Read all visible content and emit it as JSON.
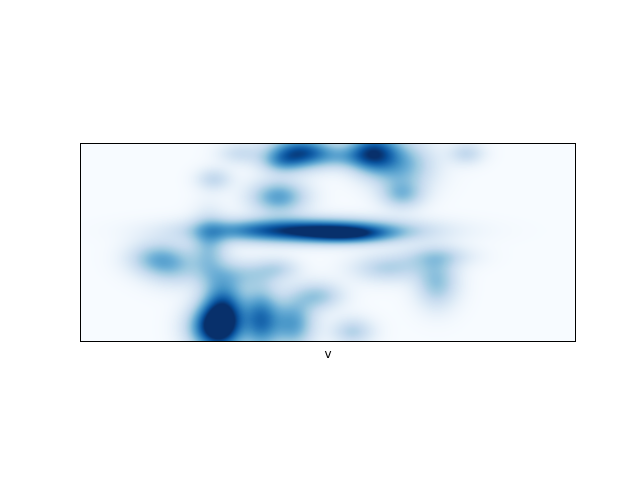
{
  "chart_data": {
    "type": "heatmap",
    "colormap": "Blues",
    "interpolation": "smooth",
    "axes_ticks_visible": false,
    "xlabel": "v",
    "blobs": [
      {
        "cx": 0.455,
        "cy": 0.44,
        "rx": 0.14,
        "ry": 0.042,
        "w": 1.0
      },
      {
        "cx": 0.54,
        "cy": 0.46,
        "rx": 0.06,
        "ry": 0.03,
        "w": 0.45
      },
      {
        "cx": 0.445,
        "cy": 0.045,
        "rx": 0.045,
        "ry": 0.055,
        "w": 0.85
      },
      {
        "cx": 0.59,
        "cy": 0.045,
        "rx": 0.035,
        "ry": 0.07,
        "w": 0.8
      },
      {
        "cx": 0.65,
        "cy": 0.11,
        "rx": 0.045,
        "ry": 0.09,
        "w": 0.45
      },
      {
        "cx": 0.405,
        "cy": 0.095,
        "rx": 0.03,
        "ry": 0.04,
        "w": 0.3
      },
      {
        "cx": 0.53,
        "cy": 0.07,
        "rx": 0.04,
        "ry": 0.04,
        "w": 0.25
      },
      {
        "cx": 0.32,
        "cy": 0.05,
        "rx": 0.03,
        "ry": 0.04,
        "w": 0.2
      },
      {
        "cx": 0.78,
        "cy": 0.05,
        "rx": 0.025,
        "ry": 0.04,
        "w": 0.25
      },
      {
        "cx": 0.27,
        "cy": 0.18,
        "rx": 0.025,
        "ry": 0.04,
        "w": 0.25
      },
      {
        "cx": 0.4,
        "cy": 0.27,
        "rx": 0.04,
        "ry": 0.06,
        "w": 0.55
      },
      {
        "cx": 0.65,
        "cy": 0.26,
        "rx": 0.03,
        "ry": 0.05,
        "w": 0.35
      },
      {
        "cx": 0.15,
        "cy": 0.58,
        "rx": 0.04,
        "ry": 0.06,
        "w": 0.35
      },
      {
        "cx": 0.19,
        "cy": 0.62,
        "rx": 0.04,
        "ry": 0.07,
        "w": 0.3
      },
      {
        "cx": 0.26,
        "cy": 0.52,
        "rx": 0.025,
        "ry": 0.12,
        "w": 0.35
      },
      {
        "cx": 0.29,
        "cy": 0.86,
        "rx": 0.03,
        "ry": 0.12,
        "w": 0.85
      },
      {
        "cx": 0.265,
        "cy": 0.93,
        "rx": 0.035,
        "ry": 0.08,
        "w": 0.75
      },
      {
        "cx": 0.365,
        "cy": 0.89,
        "rx": 0.026,
        "ry": 0.11,
        "w": 0.7
      },
      {
        "cx": 0.43,
        "cy": 0.91,
        "rx": 0.03,
        "ry": 0.09,
        "w": 0.55
      },
      {
        "cx": 0.48,
        "cy": 0.77,
        "rx": 0.035,
        "ry": 0.05,
        "w": 0.35
      },
      {
        "cx": 0.55,
        "cy": 0.95,
        "rx": 0.03,
        "ry": 0.05,
        "w": 0.3
      },
      {
        "cx": 0.62,
        "cy": 0.63,
        "rx": 0.05,
        "ry": 0.05,
        "w": 0.3
      },
      {
        "cx": 0.72,
        "cy": 0.7,
        "rx": 0.03,
        "ry": 0.09,
        "w": 0.4
      },
      {
        "cx": 0.72,
        "cy": 0.57,
        "rx": 0.05,
        "ry": 0.04,
        "w": 0.25
      },
      {
        "cx": 0.33,
        "cy": 0.66,
        "rx": 0.05,
        "ry": 0.05,
        "w": 0.25
      },
      {
        "cx": 0.4,
        "cy": 0.63,
        "rx": 0.03,
        "ry": 0.04,
        "w": 0.2
      }
    ]
  }
}
